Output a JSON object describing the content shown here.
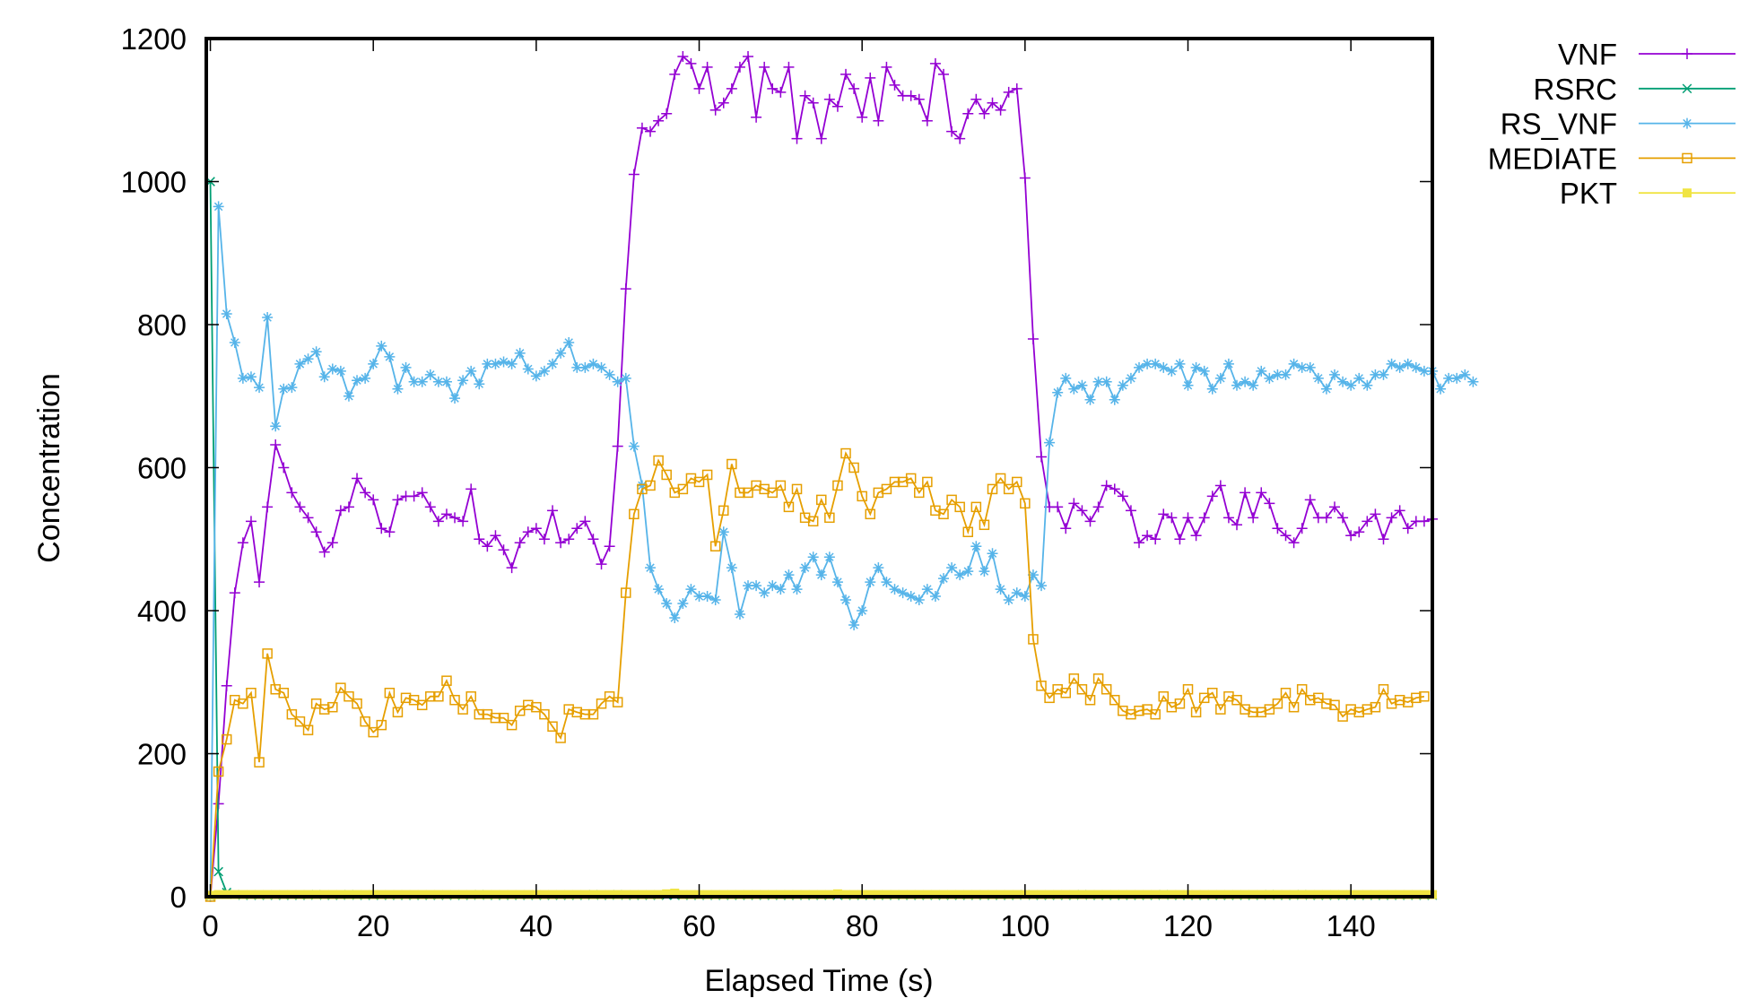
{
  "chart_data": {
    "type": "line",
    "title": "",
    "xlabel": "Elapsed Time (s)",
    "ylabel": "Concentration",
    "xlim": [
      -0.5,
      150
    ],
    "ylim": [
      0,
      1200
    ],
    "xticks": [
      "0",
      "20",
      "40",
      "60",
      "80",
      "100",
      "120",
      "140"
    ],
    "yticks": [
      "0",
      "200",
      "400",
      "600",
      "800",
      "1000",
      "1200"
    ],
    "grid": false,
    "legend_position": "top-right-outside",
    "series": [
      {
        "name": "VNF",
        "color": "#9400d3",
        "marker": "plus",
        "values": [
          0,
          130,
          295,
          425,
          495,
          525,
          440,
          545,
          632,
          600,
          565,
          545,
          530,
          510,
          482,
          495,
          540,
          545,
          585,
          565,
          555,
          515,
          510,
          555,
          560,
          560,
          565,
          545,
          525,
          535,
          530,
          525,
          570,
          500,
          490,
          505,
          485,
          460,
          495,
          510,
          515,
          500,
          540,
          495,
          500,
          515,
          525,
          500,
          465,
          490,
          630,
          850,
          1010,
          1075,
          1070,
          1085,
          1095,
          1150,
          1175,
          1165,
          1130,
          1160,
          1100,
          1110,
          1130,
          1160,
          1175,
          1090,
          1160,
          1130,
          1125,
          1160,
          1060,
          1120,
          1110,
          1060,
          1115,
          1105,
          1150,
          1130,
          1090,
          1145,
          1085,
          1160,
          1135,
          1120,
          1120,
          1115,
          1085,
          1165,
          1150,
          1070,
          1060,
          1095,
          1115,
          1095,
          1110,
          1100,
          1125,
          1130,
          1005,
          780,
          615,
          545,
          545,
          515,
          550,
          540,
          525,
          545,
          575,
          570,
          560,
          540,
          495,
          505,
          500,
          535,
          530,
          500,
          530,
          505,
          530,
          560,
          575,
          530,
          520,
          565,
          530,
          565,
          550,
          515,
          505,
          495,
          515,
          555,
          530,
          530,
          545,
          530,
          505,
          510,
          525,
          535,
          500,
          530,
          540,
          515,
          525,
          525,
          528
        ]
      },
      {
        "name": "RSRC",
        "color": "#009e73",
        "marker": "cross",
        "values": [
          1000,
          35,
          6,
          3,
          2,
          2,
          2,
          2,
          2,
          2,
          2,
          2,
          2,
          3,
          2,
          2,
          2,
          3,
          2,
          2,
          2,
          2,
          2,
          2,
          2,
          2,
          2,
          2,
          2,
          2,
          2,
          2,
          2,
          3,
          2,
          2,
          2,
          2,
          2,
          2,
          2,
          2,
          2,
          2,
          2,
          2,
          2,
          3,
          2,
          2,
          3,
          2,
          2,
          2,
          2,
          2,
          2,
          2,
          2,
          2,
          2,
          2,
          2,
          2,
          2,
          2,
          2,
          2,
          2,
          2,
          2,
          2,
          2,
          2,
          2,
          2,
          2,
          2,
          2,
          2,
          2,
          2,
          2,
          2,
          2,
          2,
          2,
          2,
          2,
          2,
          2,
          2,
          2,
          2,
          2,
          2,
          2,
          2,
          2,
          2,
          3,
          2,
          2,
          2,
          2,
          2,
          2,
          3,
          2,
          2,
          2,
          2,
          2,
          2,
          2,
          2,
          2,
          3,
          2,
          2,
          2,
          2,
          2,
          2,
          2,
          2,
          2,
          2,
          2,
          2,
          3,
          2,
          2,
          2,
          3,
          2,
          2,
          2,
          2,
          2,
          2,
          2,
          2,
          2,
          2,
          2,
          2,
          2,
          2,
          2,
          2
        ]
      },
      {
        "name": "RS_VNF",
        "color": "#56b4e9",
        "marker": "star",
        "values": [
          0,
          965,
          815,
          775,
          725,
          727,
          712,
          810,
          658,
          710,
          712,
          745,
          752,
          762,
          727,
          738,
          735,
          700,
          722,
          725,
          745,
          770,
          755,
          710,
          740,
          720,
          720,
          730,
          720,
          720,
          697,
          722,
          735,
          717,
          745,
          745,
          748,
          745,
          760,
          738,
          728,
          735,
          745,
          760,
          775,
          740,
          740,
          745,
          740,
          730,
          720,
          725,
          630,
          575,
          460,
          430,
          410,
          390,
          410,
          430,
          420,
          420,
          415,
          510,
          460,
          395,
          435,
          435,
          425,
          435,
          430,
          450,
          430,
          460,
          475,
          450,
          475,
          440,
          415,
          380,
          400,
          440,
          460,
          440,
          430,
          425,
          420,
          415,
          430,
          420,
          445,
          460,
          450,
          455,
          490,
          455,
          480,
          430,
          415,
          425,
          420,
          450,
          435,
          635,
          705,
          725,
          710,
          715,
          695,
          720,
          720,
          695,
          715,
          725,
          740,
          745,
          745,
          740,
          735,
          745,
          715,
          740,
          735,
          710,
          725,
          745,
          715,
          720,
          715,
          735,
          725,
          730,
          730,
          745,
          740,
          740,
          725,
          710,
          730,
          720,
          715,
          725,
          715,
          730,
          730,
          745,
          740,
          745,
          740,
          735,
          735,
          710,
          725,
          725,
          730,
          720
        ]
      },
      {
        "name": "MEDIATE",
        "color": "#e69f00",
        "marker": "square-open",
        "values": [
          0,
          175,
          220,
          275,
          270,
          285,
          188,
          340,
          290,
          285,
          255,
          245,
          233,
          270,
          262,
          265,
          292,
          280,
          270,
          245,
          230,
          240,
          285,
          258,
          278,
          275,
          268,
          280,
          280,
          302,
          275,
          262,
          280,
          255,
          255,
          250,
          250,
          240,
          260,
          268,
          265,
          255,
          238,
          222,
          262,
          258,
          255,
          255,
          270,
          280,
          272,
          425,
          535,
          570,
          575,
          610,
          590,
          565,
          570,
          585,
          580,
          590,
          490,
          540,
          605,
          565,
          565,
          575,
          570,
          565,
          575,
          545,
          570,
          530,
          525,
          555,
          530,
          575,
          620,
          600,
          560,
          535,
          565,
          570,
          580,
          580,
          585,
          565,
          580,
          540,
          535,
          555,
          545,
          510,
          545,
          520,
          570,
          585,
          570,
          580,
          550,
          360,
          295,
          278,
          290,
          285,
          305,
          290,
          275,
          305,
          290,
          275,
          260,
          255,
          260,
          262,
          255,
          280,
          265,
          270,
          290,
          258,
          278,
          285,
          262,
          280,
          275,
          262,
          258,
          258,
          262,
          270,
          285,
          265,
          290,
          275,
          278,
          270,
          268,
          252,
          262,
          258,
          262,
          265,
          290,
          270,
          275,
          272,
          278,
          280
        ]
      },
      {
        "name": "PKT",
        "color": "#f0e442",
        "marker": "square-filled",
        "values": [
          2,
          3,
          3,
          3,
          3,
          3,
          3,
          3,
          3,
          3,
          3,
          3,
          3,
          3,
          3,
          3,
          3,
          3,
          3,
          3,
          3,
          3,
          3,
          3,
          3,
          3,
          3,
          3,
          3,
          3,
          3,
          3,
          3,
          3,
          3,
          3,
          3,
          3,
          3,
          3,
          3,
          3,
          3,
          3,
          3,
          3,
          3,
          3,
          3,
          3,
          3,
          3,
          3,
          3,
          3,
          3,
          4,
          5,
          3,
          3,
          3,
          3,
          3,
          3,
          3,
          3,
          3,
          3,
          3,
          3,
          3,
          3,
          3,
          3,
          3,
          3,
          3,
          4,
          3,
          3,
          3,
          3,
          3,
          3,
          3,
          3,
          3,
          3,
          3,
          3,
          3,
          3,
          3,
          3,
          3,
          3,
          3,
          3,
          3,
          3,
          3,
          3,
          3,
          3,
          3,
          3,
          3,
          3,
          3,
          3,
          3,
          3,
          3,
          3,
          3,
          3,
          3,
          3,
          3,
          3,
          3,
          3,
          3,
          3,
          3,
          3,
          3,
          3,
          3,
          3,
          3,
          3,
          3,
          3,
          3,
          3,
          3,
          3,
          3,
          3,
          3,
          3,
          3,
          3,
          3,
          3,
          3,
          3,
          3,
          3,
          3
        ]
      }
    ]
  }
}
